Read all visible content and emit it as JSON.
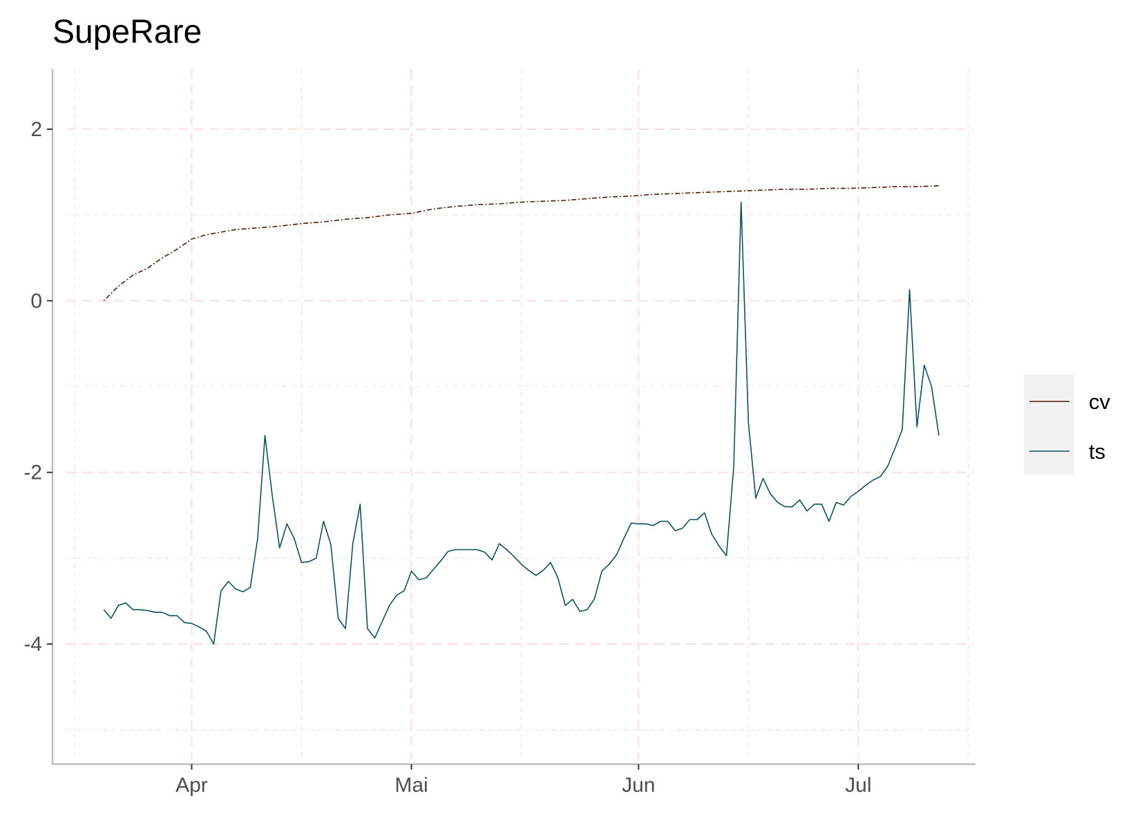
{
  "chart_data": {
    "type": "line",
    "title": "SupeRare",
    "xlabel": "",
    "ylabel": "",
    "x_axis": {
      "type": "date",
      "range": [
        "2021-03-13",
        "2021-07-17"
      ],
      "major_ticks": [
        {
          "date": "2021-04-01",
          "label": "Apr"
        },
        {
          "date": "2021-05-01",
          "label": "Mai"
        },
        {
          "date": "2021-06-01",
          "label": "Jun"
        },
        {
          "date": "2021-07-01",
          "label": "Jul"
        }
      ],
      "minor_ticks": [
        "2021-03-16",
        "2021-04-16",
        "2021-05-16",
        "2021-06-16",
        "2021-07-16"
      ]
    },
    "y_axis": {
      "range": [
        -5.4,
        2.7
      ],
      "major_ticks": [
        2,
        0,
        -2,
        -4
      ],
      "minor_ticks": [
        1,
        -1,
        -3,
        -5
      ]
    },
    "grid": true,
    "legend": {
      "position": "right"
    },
    "series": [
      {
        "name": "cv",
        "color": "#4a1a0a",
        "line_style": "dotdash",
        "points": [
          [
            "2021-03-20",
            0.0
          ],
          [
            "2021-03-22",
            0.17
          ],
          [
            "2021-03-24",
            0.3
          ],
          [
            "2021-03-26",
            0.38
          ],
          [
            "2021-03-28",
            0.5
          ],
          [
            "2021-03-30",
            0.6
          ],
          [
            "2021-04-01",
            0.72
          ],
          [
            "2021-04-03",
            0.77
          ],
          [
            "2021-04-05",
            0.8
          ],
          [
            "2021-04-07",
            0.83
          ],
          [
            "2021-04-10",
            0.85
          ],
          [
            "2021-04-13",
            0.87
          ],
          [
            "2021-04-16",
            0.9
          ],
          [
            "2021-04-19",
            0.92
          ],
          [
            "2021-04-22",
            0.95
          ],
          [
            "2021-04-25",
            0.97
          ],
          [
            "2021-04-28",
            1.0
          ],
          [
            "2021-05-01",
            1.02
          ],
          [
            "2021-05-04",
            1.07
          ],
          [
            "2021-05-07",
            1.1
          ],
          [
            "2021-05-10",
            1.12
          ],
          [
            "2021-05-13",
            1.13
          ],
          [
            "2021-05-16",
            1.15
          ],
          [
            "2021-05-19",
            1.16
          ],
          [
            "2021-05-22",
            1.17
          ],
          [
            "2021-05-25",
            1.19
          ],
          [
            "2021-05-28",
            1.21
          ],
          [
            "2021-05-31",
            1.22
          ],
          [
            "2021-06-03",
            1.24
          ],
          [
            "2021-06-06",
            1.25
          ],
          [
            "2021-06-09",
            1.26
          ],
          [
            "2021-06-12",
            1.27
          ],
          [
            "2021-06-15",
            1.28
          ],
          [
            "2021-06-18",
            1.29
          ],
          [
            "2021-06-21",
            1.3
          ],
          [
            "2021-06-24",
            1.3
          ],
          [
            "2021-06-27",
            1.31
          ],
          [
            "2021-06-30",
            1.31
          ],
          [
            "2021-07-03",
            1.32
          ],
          [
            "2021-07-06",
            1.33
          ],
          [
            "2021-07-09",
            1.33
          ],
          [
            "2021-07-12",
            1.34
          ]
        ]
      },
      {
        "name": "ts",
        "color": "#0e4f5e",
        "line_style": "solid",
        "points": [
          [
            "2021-03-20",
            -3.6
          ],
          [
            "2021-03-21",
            -3.7
          ],
          [
            "2021-03-22",
            -3.55
          ],
          [
            "2021-03-23",
            -3.52
          ],
          [
            "2021-03-24",
            -3.6
          ],
          [
            "2021-03-25",
            -3.6
          ],
          [
            "2021-03-26",
            -3.61
          ],
          [
            "2021-03-27",
            -3.63
          ],
          [
            "2021-03-28",
            -3.63
          ],
          [
            "2021-03-29",
            -3.67
          ],
          [
            "2021-03-30",
            -3.67
          ],
          [
            "2021-03-31",
            -3.75
          ],
          [
            "2021-04-01",
            -3.76
          ],
          [
            "2021-04-02",
            -3.8
          ],
          [
            "2021-04-03",
            -3.85
          ],
          [
            "2021-04-04",
            -4.0
          ],
          [
            "2021-04-05",
            -3.38
          ],
          [
            "2021-04-06",
            -3.27
          ],
          [
            "2021-04-07",
            -3.36
          ],
          [
            "2021-04-08",
            -3.39
          ],
          [
            "2021-04-09",
            -3.34
          ],
          [
            "2021-04-10",
            -2.77
          ],
          [
            "2021-04-11",
            -1.57
          ],
          [
            "2021-04-12",
            -2.27
          ],
          [
            "2021-04-13",
            -2.88
          ],
          [
            "2021-04-14",
            -2.6
          ],
          [
            "2021-04-15",
            -2.77
          ],
          [
            "2021-04-16",
            -3.05
          ],
          [
            "2021-04-17",
            -3.04
          ],
          [
            "2021-04-18",
            -3.0
          ],
          [
            "2021-04-19",
            -2.57
          ],
          [
            "2021-04-20",
            -2.84
          ],
          [
            "2021-04-21",
            -3.7
          ],
          [
            "2021-04-22",
            -3.82
          ],
          [
            "2021-04-23",
            -2.83
          ],
          [
            "2021-04-24",
            -2.37
          ],
          [
            "2021-04-25",
            -3.82
          ],
          [
            "2021-04-26",
            -3.93
          ],
          [
            "2021-04-27",
            -3.74
          ],
          [
            "2021-04-28",
            -3.55
          ],
          [
            "2021-04-29",
            -3.43
          ],
          [
            "2021-04-30",
            -3.38
          ],
          [
            "2021-05-01",
            -3.15
          ],
          [
            "2021-05-02",
            -3.25
          ],
          [
            "2021-05-03",
            -3.23
          ],
          [
            "2021-05-04",
            -3.13
          ],
          [
            "2021-05-05",
            -3.03
          ],
          [
            "2021-05-06",
            -2.92
          ],
          [
            "2021-05-07",
            -2.9
          ],
          [
            "2021-05-08",
            -2.9
          ],
          [
            "2021-05-09",
            -2.9
          ],
          [
            "2021-05-10",
            -2.9
          ],
          [
            "2021-05-11",
            -2.93
          ],
          [
            "2021-05-12",
            -3.02
          ],
          [
            "2021-05-13",
            -2.83
          ],
          [
            "2021-05-14",
            -2.9
          ],
          [
            "2021-05-15",
            -2.98
          ],
          [
            "2021-05-16",
            -3.07
          ],
          [
            "2021-05-17",
            -3.14
          ],
          [
            "2021-05-18",
            -3.2
          ],
          [
            "2021-05-19",
            -3.14
          ],
          [
            "2021-05-20",
            -3.05
          ],
          [
            "2021-05-21",
            -3.23
          ],
          [
            "2021-05-22",
            -3.55
          ],
          [
            "2021-05-23",
            -3.48
          ],
          [
            "2021-05-24",
            -3.62
          ],
          [
            "2021-05-25",
            -3.6
          ],
          [
            "2021-05-26",
            -3.47
          ],
          [
            "2021-05-27",
            -3.15
          ],
          [
            "2021-05-28",
            -3.07
          ],
          [
            "2021-05-29",
            -2.96
          ],
          [
            "2021-05-30",
            -2.77
          ],
          [
            "2021-05-31",
            -2.59
          ],
          [
            "2021-06-01",
            -2.6
          ],
          [
            "2021-06-02",
            -2.6
          ],
          [
            "2021-06-03",
            -2.62
          ],
          [
            "2021-06-04",
            -2.57
          ],
          [
            "2021-06-05",
            -2.57
          ],
          [
            "2021-06-06",
            -2.68
          ],
          [
            "2021-06-07",
            -2.65
          ],
          [
            "2021-06-08",
            -2.55
          ],
          [
            "2021-06-09",
            -2.55
          ],
          [
            "2021-06-10",
            -2.47
          ],
          [
            "2021-06-11",
            -2.72
          ],
          [
            "2021-06-12",
            -2.86
          ],
          [
            "2021-06-13",
            -2.97
          ],
          [
            "2021-06-14",
            -1.93
          ],
          [
            "2021-06-15",
            1.15
          ],
          [
            "2021-06-16",
            -1.42
          ],
          [
            "2021-06-17",
            -2.3
          ],
          [
            "2021-06-18",
            -2.07
          ],
          [
            "2021-06-19",
            -2.25
          ],
          [
            "2021-06-20",
            -2.35
          ],
          [
            "2021-06-21",
            -2.4
          ],
          [
            "2021-06-22",
            -2.4
          ],
          [
            "2021-06-23",
            -2.32
          ],
          [
            "2021-06-24",
            -2.45
          ],
          [
            "2021-06-25",
            -2.37
          ],
          [
            "2021-06-26",
            -2.37
          ],
          [
            "2021-06-27",
            -2.57
          ],
          [
            "2021-06-28",
            -2.35
          ],
          [
            "2021-06-29",
            -2.38
          ],
          [
            "2021-06-30",
            -2.28
          ],
          [
            "2021-07-01",
            -2.22
          ],
          [
            "2021-07-02",
            -2.15
          ],
          [
            "2021-07-03",
            -2.09
          ],
          [
            "2021-07-04",
            -2.05
          ],
          [
            "2021-07-05",
            -1.93
          ],
          [
            "2021-07-06",
            -1.72
          ],
          [
            "2021-07-07",
            -1.5
          ],
          [
            "2021-07-08",
            0.13
          ],
          [
            "2021-07-09",
            -1.47
          ],
          [
            "2021-07-10",
            -0.75
          ],
          [
            "2021-07-11",
            -1.0
          ],
          [
            "2021-07-12",
            -1.57
          ]
        ]
      }
    ]
  }
}
